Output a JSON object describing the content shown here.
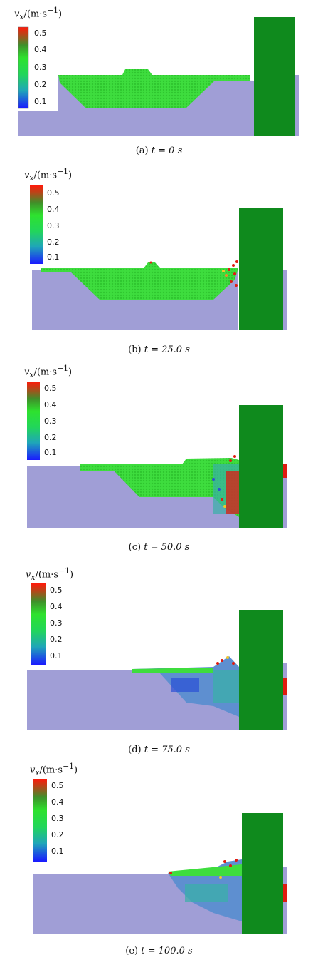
{
  "figure": {
    "colorbar": {
      "variable": "v",
      "subscript": "x",
      "unit": "/(m·s",
      "unit_exp": "−1",
      "unit_close": ")",
      "ticks": [
        "0.5",
        "0.4",
        "0.3",
        "0.2",
        "0.1"
      ]
    },
    "colors": {
      "water": "#a09ed6",
      "wall": "#0f8a1d",
      "soil": "#3edd3e",
      "high": "#e01b10",
      "low": "#2a4fd6",
      "mid": "#37b0a6"
    },
    "panels": [
      {
        "label": "(a)",
        "time": "t = 0 s"
      },
      {
        "label": "(b)",
        "time": "t = 25.0 s"
      },
      {
        "label": "(c)",
        "time": "t = 50.0 s"
      },
      {
        "label": "(d)",
        "time": "t = 75.0 s"
      },
      {
        "label": "(e)",
        "time": "t = 100.0 s"
      }
    ]
  }
}
